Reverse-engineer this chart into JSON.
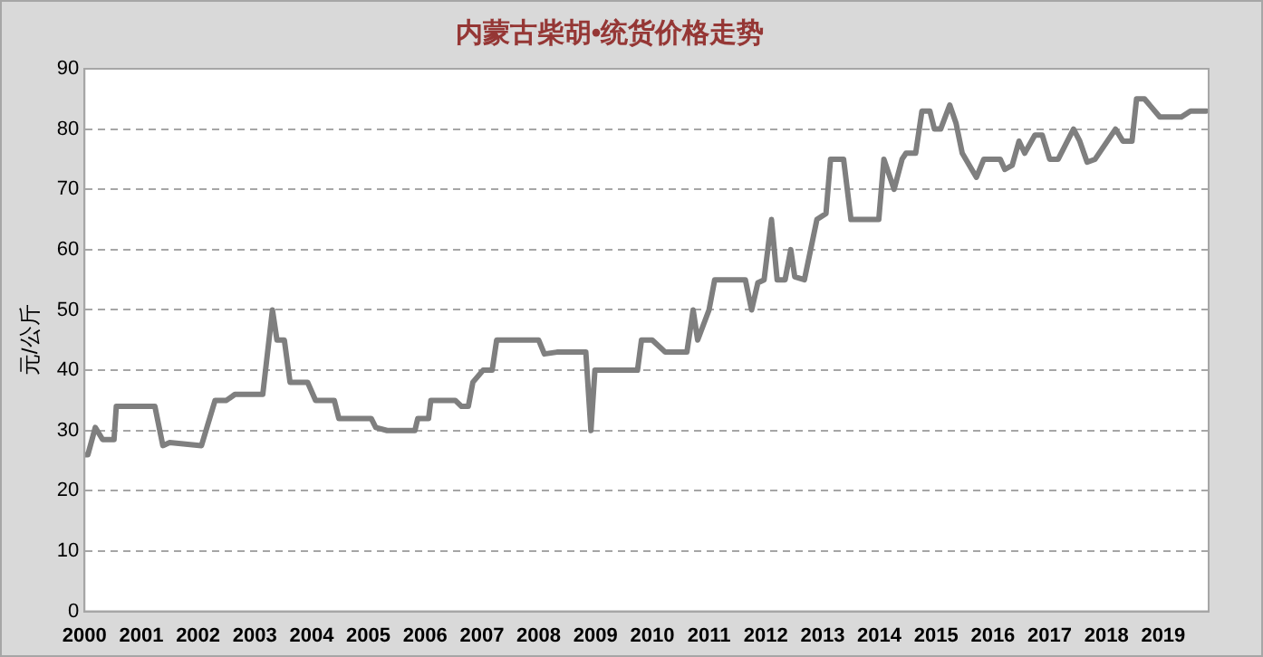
{
  "chart_data": {
    "type": "line",
    "title": "内蒙古柴胡•统货价格走势",
    "ylabel": "元/公斤",
    "xlim": [
      2000,
      2019.8
    ],
    "xticks": [
      2000,
      2001,
      2002,
      2003,
      2004,
      2005,
      2006,
      2007,
      2008,
      2009,
      2010,
      2011,
      2012,
      2013,
      2014,
      2015,
      2016,
      2017,
      2018,
      2019
    ],
    "ylim": [
      0,
      90
    ],
    "yticks": [
      0,
      10,
      20,
      30,
      40,
      50,
      60,
      70,
      80,
      90
    ],
    "grid": "y",
    "legend": false,
    "marker": "none",
    "line_style": "solid",
    "series": [
      {
        "color": "#7f7f7f",
        "x": [
          2000,
          2000.06,
          2000.19,
          2000.32,
          2000.52,
          2000.56,
          2001.24,
          2001.38,
          2001.5,
          2002.06,
          2002.3,
          2002.5,
          2002.65,
          2002.9,
          2003.14,
          2003.31,
          2003.39,
          2003.52,
          2003.62,
          2003.93,
          2004.07,
          2004.4,
          2004.48,
          2005.05,
          2005.13,
          2005.33,
          2005.82,
          2005.87,
          2006.06,
          2006.1,
          2006.53,
          2006.64,
          2006.76,
          2006.84,
          2007.02,
          2007.18,
          2007.26,
          2008.0,
          2008.1,
          2008.32,
          2008.83,
          2008.92,
          2008.99,
          2009.74,
          2009.81,
          2010.0,
          2010.23,
          2010.61,
          2010.72,
          2010.8,
          2011.0,
          2011.1,
          2011.64,
          2011.75,
          2011.86,
          2011.97,
          2012.1,
          2012.2,
          2012.34,
          2012.44,
          2012.51,
          2012.68,
          2012.9,
          2013.06,
          2013.14,
          2013.37,
          2013.5,
          2013.99,
          2014.08,
          2014.26,
          2014.4,
          2014.47,
          2014.64,
          2014.75,
          2014.89,
          2014.97,
          2015.08,
          2015.24,
          2015.35,
          2015.46,
          2015.71,
          2015.84,
          2016.13,
          2016.21,
          2016.34,
          2016.46,
          2016.56,
          2016.74,
          2016.87,
          2017.0,
          2017.15,
          2017.42,
          2017.53,
          2017.66,
          2017.8,
          2018.16,
          2018.29,
          2018.45,
          2018.53,
          2018.67,
          2018.94,
          2019.32,
          2019.48,
          2019.76
        ],
        "values": [
          26,
          26,
          30.5,
          28.5,
          28.5,
          34,
          34,
          27.5,
          28,
          27.5,
          35,
          35,
          36,
          36,
          36,
          50,
          45,
          45,
          38,
          38,
          35,
          35,
          32,
          32,
          30.5,
          30,
          30,
          32,
          32,
          35,
          35,
          34,
          34,
          38,
          40,
          40,
          45,
          45,
          42.7,
          43,
          43,
          30,
          40,
          40,
          45,
          45,
          43,
          43,
          50,
          45,
          50,
          55,
          55,
          50,
          54.5,
          55,
          65,
          55,
          55,
          60,
          55.5,
          55,
          65,
          66,
          75,
          75,
          65,
          65,
          75,
          70,
          75,
          76,
          76,
          83,
          83,
          80,
          80,
          84,
          81,
          76,
          72,
          75,
          75,
          73.3,
          74,
          78,
          76,
          79,
          79,
          75,
          75,
          80,
          78,
          74.5,
          75,
          80,
          78,
          78,
          85,
          85,
          82,
          82,
          83,
          83
        ]
      }
    ]
  }
}
